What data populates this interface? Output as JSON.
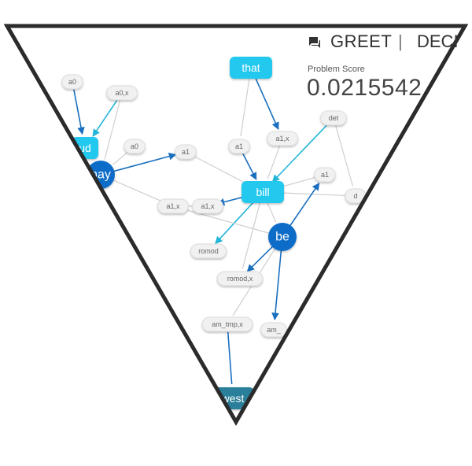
{
  "header": {
    "tab_greet": "GREET",
    "separator": "|",
    "tab_next": "DECI",
    "score_label": "Problem Score",
    "score_value": "0.0215542"
  },
  "colors": {
    "frame": "#2b2b2b",
    "edge_grey": "#cfcfcf",
    "edge_blue": "#1a6fbf",
    "edge_cyan": "#22b5d8",
    "node_dark": "#0a6cc8",
    "node_cyan": "#22c8ee",
    "node_label": "#f1f1f1",
    "node_teal": "#2a7f9a"
  },
  "nodes": [
    {
      "id": "that",
      "label": "that",
      "kind": "cyan"
    },
    {
      "id": "a0_top",
      "label": "a0",
      "kind": "label"
    },
    {
      "id": "a0x_top",
      "label": "a0,x",
      "kind": "label"
    },
    {
      "id": "ud",
      "label": "ud",
      "kind": "cyan"
    },
    {
      "id": "a0_mid",
      "label": "a0",
      "kind": "label"
    },
    {
      "id": "nay",
      "label": "nay",
      "kind": "dark"
    },
    {
      "id": "a1_left",
      "label": "a1",
      "kind": "label"
    },
    {
      "id": "a1_center",
      "label": "a1",
      "kind": "label"
    },
    {
      "id": "a1x_right",
      "label": "a1,x",
      "kind": "label"
    },
    {
      "id": "det",
      "label": "det",
      "kind": "label"
    },
    {
      "id": "a1x_low",
      "label": "a1,x",
      "kind": "label"
    },
    {
      "id": "a1x_mid",
      "label": "a1,x",
      "kind": "label"
    },
    {
      "id": "bill",
      "label": "bill",
      "kind": "cyan"
    },
    {
      "id": "a1_right",
      "label": "a1",
      "kind": "label"
    },
    {
      "id": "d_edge",
      "label": "d",
      "kind": "label"
    },
    {
      "id": "be",
      "label": "be",
      "kind": "dark"
    },
    {
      "id": "romod",
      "label": "romod",
      "kind": "label"
    },
    {
      "id": "romodx",
      "label": "romod,x",
      "kind": "label"
    },
    {
      "id": "amtmpx",
      "label": "am_tmp,x",
      "kind": "label"
    },
    {
      "id": "arg",
      "label": "am_",
      "kind": "label"
    },
    {
      "id": "west",
      "label": "west",
      "kind": "teal"
    }
  ],
  "edges": [
    {
      "from": "that",
      "to": "a1x_right",
      "style": "blue",
      "arrow": true
    },
    {
      "from": "that",
      "to": "a1_center",
      "style": "grey",
      "arrow": false
    },
    {
      "from": "a0_top",
      "to": "ud",
      "style": "blue",
      "arrow": true
    },
    {
      "from": "a0x_top",
      "to": "ud",
      "style": "cyan",
      "arrow": true
    },
    {
      "from": "a0x_top",
      "to": "nay",
      "style": "grey",
      "arrow": false
    },
    {
      "from": "a0_mid",
      "to": "nay",
      "style": "grey",
      "arrow": false
    },
    {
      "from": "nay",
      "to": "a1_left",
      "style": "blue",
      "arrow": true
    },
    {
      "from": "nay",
      "to": "a1x_low",
      "style": "grey",
      "arrow": false
    },
    {
      "from": "a1_left",
      "to": "bill",
      "style": "grey",
      "arrow": false
    },
    {
      "from": "a1_center",
      "to": "bill",
      "style": "blue",
      "arrow": true
    },
    {
      "from": "a1x_right",
      "to": "bill",
      "style": "grey",
      "arrow": false
    },
    {
      "from": "det",
      "to": "bill",
      "style": "cyan",
      "arrow": true
    },
    {
      "from": "bill",
      "to": "a1x_mid",
      "style": "blue",
      "arrow": true
    },
    {
      "from": "a1x_low",
      "to": "a1x_mid",
      "style": "grey",
      "arrow": false
    },
    {
      "from": "bill",
      "to": "romod",
      "style": "cyan",
      "arrow": true
    },
    {
      "from": "bill",
      "to": "romodx",
      "style": "grey",
      "arrow": false
    },
    {
      "from": "bill",
      "to": "be",
      "style": "grey",
      "arrow": false
    },
    {
      "from": "bill",
      "to": "a1_right",
      "style": "grey",
      "arrow": false
    },
    {
      "from": "bill",
      "to": "d_edge",
      "style": "grey",
      "arrow": false
    },
    {
      "from": "be",
      "to": "a1_right",
      "style": "blue",
      "arrow": true
    },
    {
      "from": "be",
      "to": "romodx",
      "style": "blue",
      "arrow": true
    },
    {
      "from": "be",
      "to": "arg",
      "style": "blue",
      "arrow": true
    },
    {
      "from": "be",
      "to": "amtmpx",
      "style": "grey",
      "arrow": false
    },
    {
      "from": "be",
      "to": "a1x_low",
      "style": "grey",
      "arrow": false
    },
    {
      "from": "amtmpx",
      "to": "west",
      "style": "blue",
      "arrow": false
    },
    {
      "from": "det",
      "to": "d_edge",
      "style": "grey",
      "arrow": false
    }
  ]
}
